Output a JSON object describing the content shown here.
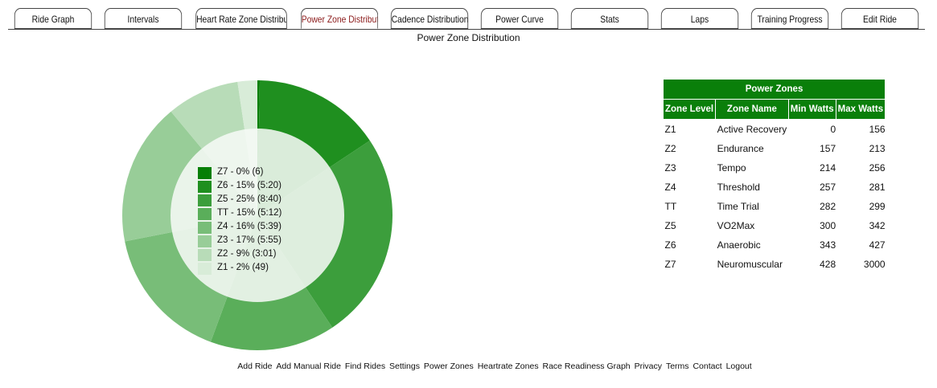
{
  "tabs": [
    {
      "label": "Ride Graph",
      "active": false
    },
    {
      "label": "Intervals",
      "active": false
    },
    {
      "label": "Heart Rate Zone Distribution",
      "active": false
    },
    {
      "label": "Power Zone Distribution",
      "active": true
    },
    {
      "label": "Cadence Distribution",
      "active": false
    },
    {
      "label": "Power Curve",
      "active": false
    },
    {
      "label": "Stats",
      "active": false
    },
    {
      "label": "Laps",
      "active": false
    },
    {
      "label": "Training Progress",
      "active": false
    },
    {
      "label": "Edit Ride",
      "active": false
    }
  ],
  "page_title": "Power Zone Distribution",
  "chart_data": {
    "type": "pie",
    "variant": "donut",
    "categories": [
      "Z7",
      "Z6",
      "Z5",
      "TT",
      "Z4",
      "Z3",
      "Z2",
      "Z1"
    ],
    "values": [
      6,
      320,
      520,
      312,
      339,
      355,
      181,
      49
    ],
    "legend": [
      "Z7 - 0% (6)",
      "Z6 - 15% (5:20)",
      "Z5 - 25% (8:40)",
      "TT - 15% (5:12)",
      "Z4 - 16% (5:39)",
      "Z3 - 17% (5:55)",
      "Z2 - 9% (3:01)",
      "Z1 - 2% (49)"
    ],
    "colors": [
      "#067f06",
      "#1f8f1f",
      "#3c9e3c",
      "#5aae5a",
      "#78bd78",
      "#98cd98",
      "#b8dcb8",
      "#d8ecd8"
    ],
    "legend_placement": "center",
    "hole_color": "#f5f9f5"
  },
  "zones_table": {
    "title": "Power Zones",
    "headers": [
      "Zone Level",
      "Zone Name",
      "Min Watts",
      "Max Watts"
    ],
    "rows": [
      [
        "Z1",
        "Active Recovery",
        "0",
        "156"
      ],
      [
        "Z2",
        "Endurance",
        "157",
        "213"
      ],
      [
        "Z3",
        "Tempo",
        "214",
        "256"
      ],
      [
        "Z4",
        "Threshold",
        "257",
        "281"
      ],
      [
        "TT",
        "Time Trial",
        "282",
        "299"
      ],
      [
        "Z5",
        "VO2Max",
        "300",
        "342"
      ],
      [
        "Z6",
        "Anaerobic",
        "343",
        "427"
      ],
      [
        "Z7",
        "Neuromuscular",
        "428",
        "3000"
      ]
    ],
    "header_color": "#0a7f0a"
  },
  "footer_links": [
    "Add Ride",
    "Add Manual Ride",
    "Find Rides",
    "Settings",
    "Power Zones",
    "Heartrate Zones",
    "Race Readiness Graph",
    "Privacy",
    "Terms",
    "Contact",
    "Logout"
  ]
}
